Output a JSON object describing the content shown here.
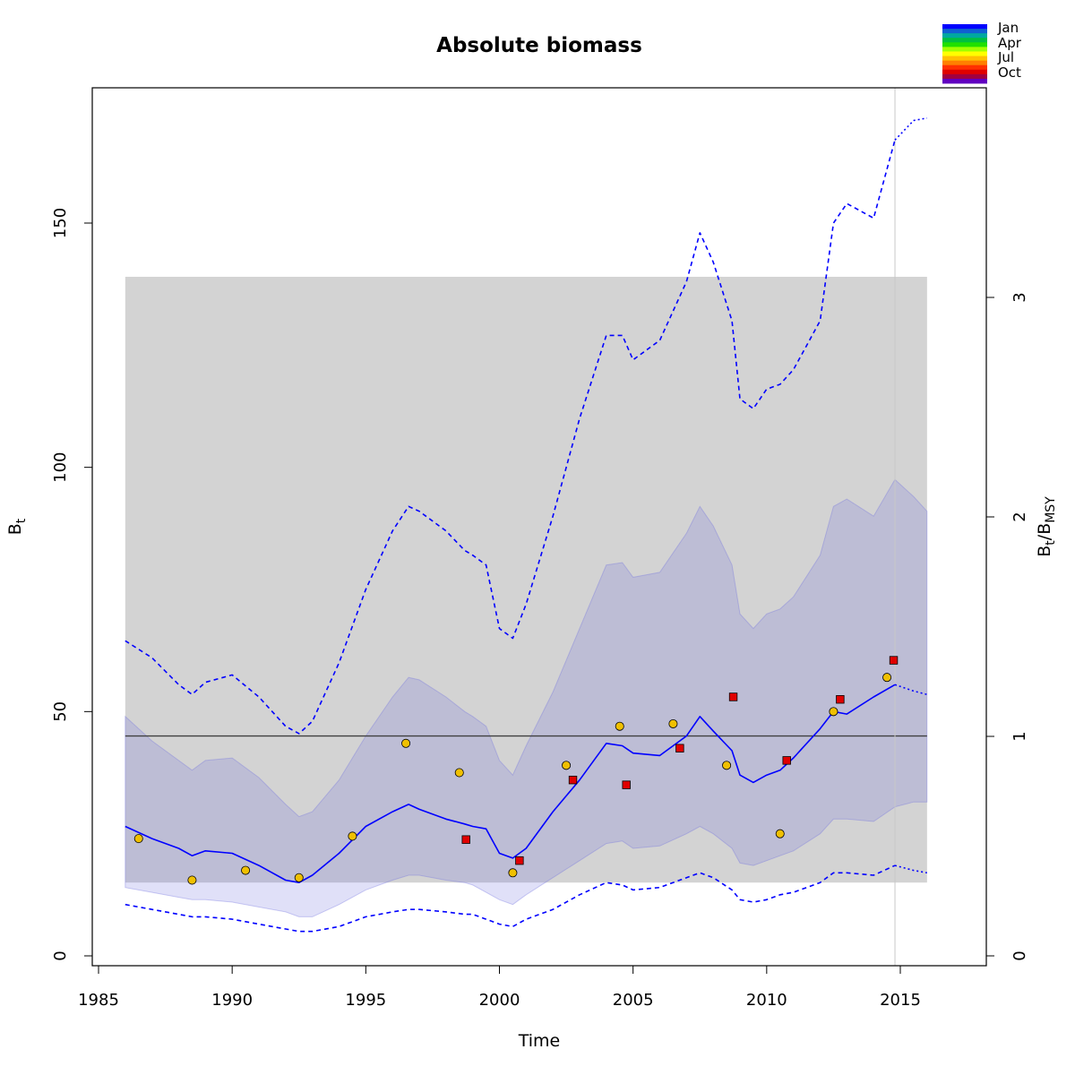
{
  "chart_data": {
    "type": "line",
    "title": "Absolute biomass",
    "xlabel": "Time",
    "ylabel": "B",
    "ylabel_sub": "t",
    "y2label_parts": [
      "B",
      "t",
      "/B",
      "MSY"
    ],
    "xlim": [
      1985,
      2018
    ],
    "ylim": [
      0,
      175
    ],
    "y2lim": [
      0,
      3.89
    ],
    "x_ticks": [
      1985,
      1990,
      1995,
      2000,
      2005,
      2010,
      2015
    ],
    "y_ticks": [
      0,
      50,
      100,
      150
    ],
    "y2_ticks": [
      0,
      1,
      2,
      3
    ],
    "bmsy": 45,
    "bmsy_band": {
      "x_start": 1986,
      "x_end": 2016,
      "lower": 15,
      "upper": 139
    },
    "last_observation_x": 2014.8,
    "legend": {
      "placement": "top-right",
      "labels": [
        "Jan",
        "Apr",
        "Jul",
        "Oct"
      ],
      "colors": [
        "#0000ff",
        "#1060d0",
        "#00a8a0",
        "#00c040",
        "#20e000",
        "#a0ff00",
        "#ffff00",
        "#ffc000",
        "#ff8000",
        "#ff3000",
        "#e00000",
        "#a00040",
        "#6000c0"
      ]
    },
    "series": [
      {
        "name": "B_t estimate",
        "color": "#0000ff",
        "style": "solid",
        "x": [
          1986,
          1987,
          1988,
          1988.5,
          1989,
          1990,
          1991,
          1992,
          1992.5,
          1993,
          1994,
          1995,
          1996,
          1996.6,
          1997,
          1998,
          1998.7,
          1999,
          1999.5,
          2000,
          2000.5,
          2001,
          2002,
          2003,
          2004,
          2004.6,
          2005,
          2006,
          2007,
          2007.5,
          2008,
          2008.7,
          2009,
          2009.5,
          2010,
          2010.5,
          2011,
          2012,
          2012.5,
          2013,
          2014,
          2014.8
        ],
        "y": [
          26.5,
          24,
          22,
          20.5,
          21.5,
          21,
          18.5,
          15.5,
          15,
          16.5,
          21,
          26.5,
          29.5,
          31,
          30,
          28,
          27,
          26.5,
          26,
          21,
          20,
          22,
          29.5,
          36,
          43.5,
          43,
          41.5,
          41,
          45,
          49,
          46,
          42,
          37,
          35.5,
          37,
          38,
          40.5,
          46.5,
          50,
          49.5,
          53,
          55.5
        ]
      },
      {
        "name": "B_t projection",
        "color": "#0000ff",
        "style": "dotted",
        "x": [
          2014.8,
          2015.5,
          2016
        ],
        "y": [
          55.5,
          54.2,
          53.5
        ]
      },
      {
        "name": "95% upper",
        "color": "#0000ff",
        "style": "dashed",
        "x": [
          1986,
          1987,
          1988,
          1988.5,
          1989,
          1990,
          1991,
          1992,
          1992.5,
          1993,
          1994,
          1995,
          1996,
          1996.6,
          1997,
          1998,
          1998.7,
          1999,
          1999.5,
          2000,
          2000.5,
          2001,
          2002,
          2003,
          2004,
          2004.6,
          2005,
          2006,
          2007,
          2007.5,
          2008,
          2008.7,
          2009,
          2009.5,
          2010,
          2010.5,
          2011,
          2012,
          2012.5,
          2013,
          2014,
          2014.8
        ],
        "y": [
          64.5,
          61,
          55.5,
          53.5,
          56,
          57.5,
          53,
          47,
          45.5,
          48,
          60,
          75,
          87,
          92,
          91,
          87,
          83,
          82,
          80,
          67,
          65,
          72,
          90,
          110,
          127,
          127,
          122,
          126,
          138,
          148,
          142,
          130,
          114,
          112,
          116,
          117,
          120,
          130,
          150,
          154,
          151,
          167
        ]
      },
      {
        "name": "95% upper projection",
        "color": "#0000ff",
        "style": "dotted",
        "x": [
          2014.8,
          2015.5,
          2016
        ],
        "y": [
          167,
          171,
          171.5
        ]
      },
      {
        "name": "95% lower",
        "color": "#0000ff",
        "style": "dashed",
        "x": [
          1986,
          1987,
          1988,
          1988.5,
          1989,
          1990,
          1991,
          1992,
          1992.5,
          1993,
          1994,
          1995,
          1996,
          1996.6,
          1997,
          1998,
          1998.7,
          1999,
          1999.5,
          2000,
          2000.5,
          2001,
          2002,
          2003,
          2004,
          2004.6,
          2005,
          2006,
          2007,
          2007.5,
          2008,
          2008.7,
          2009,
          2009.5,
          2010,
          2010.5,
          2011,
          2012,
          2012.5,
          2013,
          2014,
          2014.8
        ],
        "y": [
          10.5,
          9.5,
          8.5,
          8,
          8,
          7.5,
          6.5,
          5.5,
          5,
          5,
          6,
          8,
          9,
          9.5,
          9.5,
          9,
          8.5,
          8.5,
          7.5,
          6.5,
          6,
          7.5,
          9.5,
          12.5,
          15,
          14.5,
          13.5,
          14,
          16,
          17,
          16,
          13.5,
          11.5,
          11,
          11.5,
          12.5,
          13,
          15,
          17,
          17,
          16.5,
          18.5
        ]
      },
      {
        "name": "95% lower projection",
        "color": "#0000ff",
        "style": "dotted",
        "x": [
          2014.8,
          2015.5,
          2016
        ],
        "y": [
          18.5,
          17.5,
          17
        ]
      }
    ],
    "ci_band": {
      "color": "#7070e0",
      "x": [
        1986,
        1987,
        1988,
        1988.5,
        1989,
        1990,
        1991,
        1992,
        1992.5,
        1993,
        1994,
        1995,
        1996,
        1996.6,
        1997,
        1998,
        1998.7,
        1999,
        1999.5,
        2000,
        2000.5,
        2001,
        2002,
        2003,
        2004,
        2004.6,
        2005,
        2006,
        2007,
        2007.5,
        2008,
        2008.7,
        2009,
        2009.5,
        2010,
        2010.5,
        2011,
        2012,
        2012.5,
        2013,
        2014,
        2014.8,
        2015.5,
        2016
      ],
      "upper": [
        49,
        44,
        40,
        38,
        40,
        40.5,
        36.5,
        31,
        28.5,
        29.5,
        36,
        45,
        53,
        57,
        56.5,
        53,
        50,
        49,
        47,
        40,
        37,
        43,
        54,
        67,
        80,
        80.5,
        77.5,
        78.5,
        86.5,
        92,
        88,
        80,
        70,
        67,
        70,
        71,
        73.5,
        82,
        92,
        93.5,
        90,
        97.5,
        94,
        91
      ],
      "lower": [
        14,
        13,
        12,
        11.5,
        11.5,
        11,
        10,
        9,
        8,
        8,
        10.5,
        13.5,
        15.5,
        16.5,
        16.5,
        15.5,
        15,
        14.5,
        13,
        11.5,
        10.5,
        12.5,
        16,
        19.5,
        23,
        23.5,
        22,
        22.5,
        25,
        26.5,
        25,
        22,
        19,
        18.5,
        19.5,
        20.5,
        21.5,
        25,
        28,
        28,
        27.5,
        30.5,
        31.5,
        31.5
      ]
    },
    "points": [
      {
        "name": "index 1",
        "shape": "circle",
        "color": "#f0c000",
        "x": [
          1986.5,
          1988.5,
          1990.5,
          1992.5,
          1994.5,
          1996.5,
          1998.5,
          2000.5,
          2002.5,
          2004.5,
          2006.5,
          2008.5,
          2010.5,
          2012.5,
          2014.5
        ],
        "y": [
          24,
          15.5,
          17.5,
          16,
          24.5,
          43.5,
          37.5,
          17,
          39,
          47,
          47.5,
          39,
          25,
          50,
          57
        ]
      },
      {
        "name": "index 2",
        "shape": "square",
        "color": "#e00000",
        "x": [
          1998.75,
          2000.75,
          2002.75,
          2004.75,
          2006.75,
          2008.75,
          2010.75,
          2012.75,
          2014.75
        ],
        "y": [
          23.8,
          19.5,
          36,
          35,
          42.5,
          53,
          40,
          52.5,
          60.5
        ]
      }
    ]
  }
}
